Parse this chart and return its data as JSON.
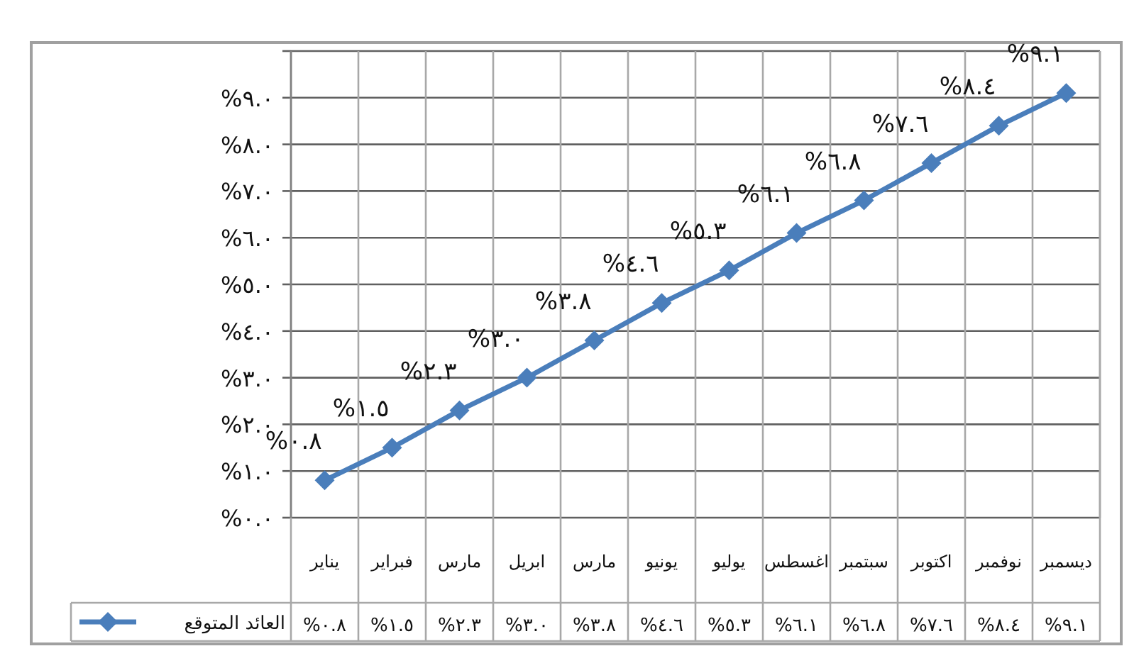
{
  "chart_data": {
    "type": "line",
    "categories": [
      "يناير",
      "فبراير",
      "مارس",
      "ابريل",
      "مارس",
      "يونيو",
      "يوليو",
      "اغسطس",
      "سبتمبر",
      "اكتوبر",
      "نوفمبر",
      "ديسمبر"
    ],
    "series": [
      {
        "name": "العائد المتوقع",
        "color": "#4a7ebb",
        "values": [
          0.8,
          1.5,
          2.3,
          3.0,
          3.8,
          4.6,
          5.3,
          6.1,
          6.8,
          7.6,
          8.4,
          9.1
        ],
        "value_labels": [
          "%٠.٨",
          "%١.٥",
          "%٢.٣",
          "%٣.٠",
          "%٣.٨",
          "%٤.٦",
          "%٥.٣",
          "%٦.١",
          "%٦.٨",
          "%٧.٦",
          "%٨.٤",
          "%٩.١"
        ]
      }
    ],
    "ylim": [
      0,
      10
    ],
    "yticks": [
      {
        "value": 0,
        "label": "%٠.٠"
      },
      {
        "value": 1,
        "label": "%١.٠"
      },
      {
        "value": 2,
        "label": "%٢.٠"
      },
      {
        "value": 3,
        "label": "%٣.٠"
      },
      {
        "value": 4,
        "label": "%٤.٠"
      },
      {
        "value": 5,
        "label": "%٥.٠"
      },
      {
        "value": 6,
        "label": "%٦.٠"
      },
      {
        "value": 7,
        "label": "%٧.٠"
      },
      {
        "value": 8,
        "label": "%٨.٠"
      },
      {
        "value": 9,
        "label": "%٩.٠"
      },
      {
        "value": 10,
        "label": null
      }
    ],
    "grid": true,
    "marker": "diamond",
    "line_style": "solid",
    "legend": "bottom"
  }
}
